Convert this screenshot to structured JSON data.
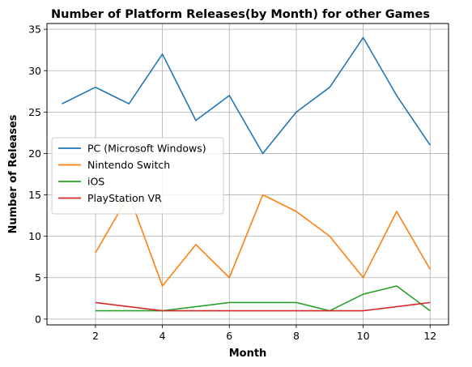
{
  "chart_data": {
    "type": "line",
    "title": "Number of Platform Releases(by Month) for other Games",
    "xlabel": "Month",
    "ylabel": "Number of Releases",
    "xlim": [
      0.55,
      12.55
    ],
    "ylim": [
      -0.7,
      35.7
    ],
    "xticks": [
      2,
      4,
      6,
      8,
      10,
      12
    ],
    "yticks": [
      0,
      5,
      10,
      15,
      20,
      25,
      30,
      35
    ],
    "grid": true,
    "legend_position": "center-left",
    "series": [
      {
        "name": "PC (Microsoft Windows)",
        "color": "#1f77b4",
        "x": [
          1,
          2,
          3,
          4,
          5,
          6,
          7,
          8,
          9,
          10,
          11,
          12
        ],
        "y": [
          26,
          28,
          26,
          32,
          24,
          27,
          20,
          25,
          28,
          34,
          27,
          21
        ]
      },
      {
        "name": "Nintendo Switch",
        "color": "#ff7f0e",
        "x": [
          2,
          3,
          4,
          5,
          6,
          7,
          8,
          9,
          10,
          11,
          12
        ],
        "y": [
          8,
          15,
          4,
          9,
          5,
          15,
          13,
          10,
          5,
          13,
          6
        ]
      },
      {
        "name": "iOS",
        "color": "#2ca02c",
        "x": [
          2,
          4,
          6,
          8,
          9,
          10,
          11,
          12
        ],
        "y": [
          1,
          1,
          2,
          2,
          1,
          3,
          4,
          1
        ]
      },
      {
        "name": "PlayStation VR",
        "color": "#d62728",
        "x": [
          2,
          4,
          10,
          12
        ],
        "y": [
          2,
          1,
          1,
          2
        ]
      }
    ]
  }
}
